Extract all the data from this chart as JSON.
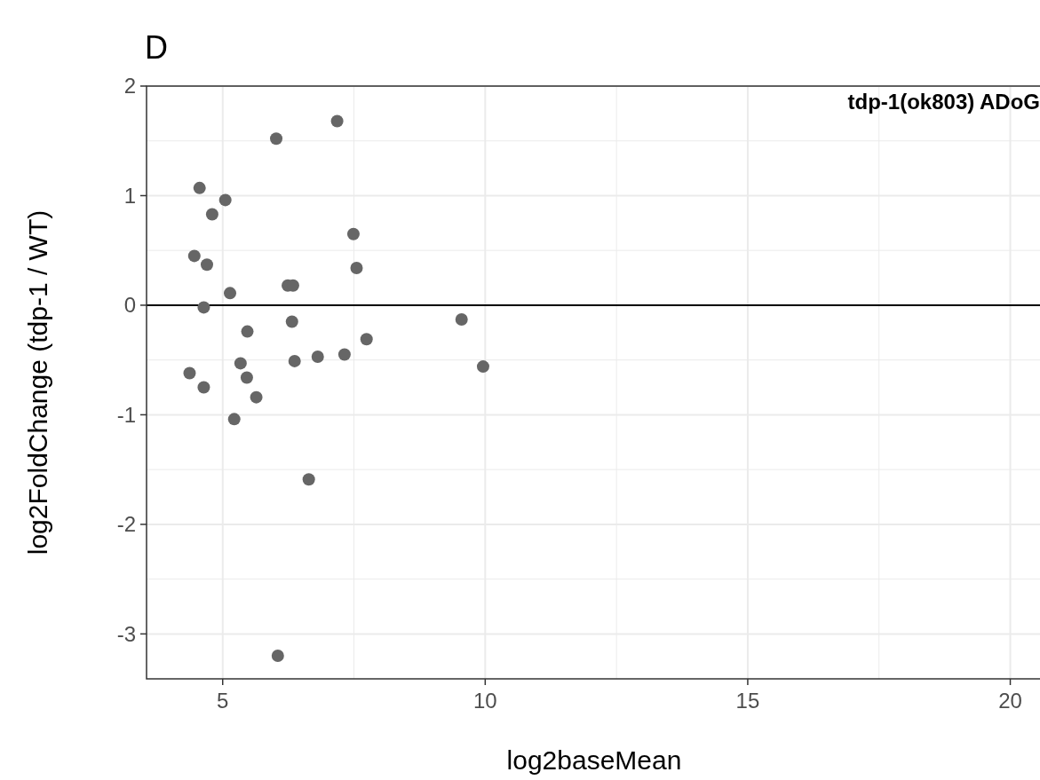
{
  "chart_data": {
    "type": "scatter",
    "title": "D",
    "xlabel": "log2baseMean",
    "ylabel": "log2FoldChange (tdp-1 / WT)",
    "annotations": [
      "tdp-1(ok803) ADoG"
    ],
    "xlim": [
      3.55,
      20.6
    ],
    "ylim": [
      -3.41,
      2
    ],
    "xticks": [
      5,
      {
        "value": 7.5,
        "label": null
      },
      10,
      {
        "value": 12.5,
        "label": null
      },
      15,
      {
        "value": 17.5,
        "label": null
      },
      20
    ],
    "yticks": [
      -3,
      {
        "value": -2.5,
        "label": null
      },
      -2,
      {
        "value": -1.5,
        "label": null
      },
      -1,
      {
        "value": -0.5,
        "label": null
      },
      0,
      {
        "value": 0.5,
        "label": null
      },
      1,
      {
        "value": 1.5,
        "label": null
      },
      2
    ],
    "grid": true,
    "marker": "circle",
    "ref_lines": [
      {
        "axis": "y",
        "value": 0,
        "color": "#000000"
      }
    ],
    "series": [
      {
        "color": "#666666",
        "x": [
          4.56,
          5.05,
          4.8,
          6.02,
          7.18,
          4.46,
          4.7,
          7.49,
          7.55,
          5.14,
          6.24,
          6.34,
          4.64,
          5.47,
          6.32,
          9.55,
          4.37,
          5.34,
          4.64,
          5.46,
          5.64,
          6.37,
          6.81,
          7.32,
          7.74,
          9.96,
          5.22,
          6.64,
          6.05
        ],
        "values": [
          1.07,
          0.96,
          0.83,
          1.52,
          1.68,
          0.45,
          0.37,
          0.65,
          0.34,
          0.11,
          0.18,
          0.18,
          -0.02,
          -0.24,
          -0.15,
          -0.13,
          -0.62,
          -0.53,
          -0.75,
          -0.66,
          -0.84,
          -0.51,
          -0.47,
          -0.45,
          -0.31,
          -0.56,
          -1.04,
          -1.59,
          -3.2
        ]
      }
    ]
  }
}
